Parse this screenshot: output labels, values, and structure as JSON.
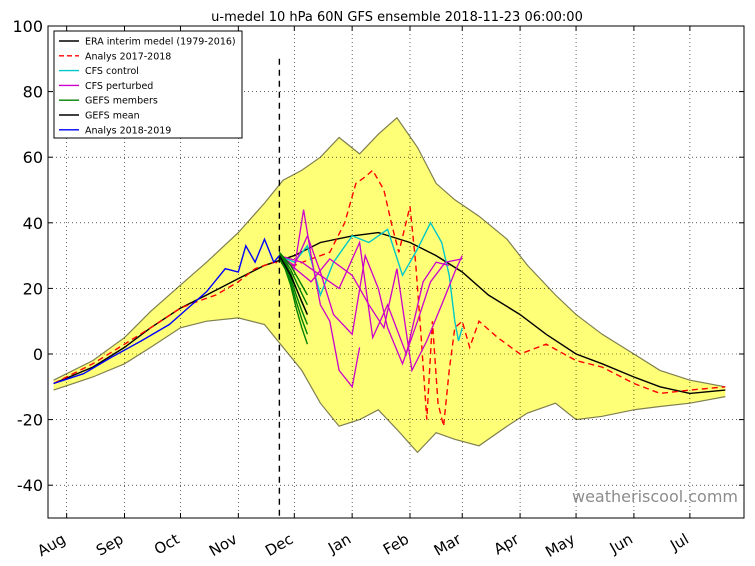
{
  "chart_data": {
    "type": "line",
    "title": "u-medel 10 hPa 60N GFS ensemble 2018-11-23 06:00:00",
    "xlabel": "",
    "ylabel": "",
    "ylim": [
      -50,
      100
    ],
    "yticks": [
      -40,
      -20,
      0,
      20,
      40,
      60,
      80,
      100
    ],
    "xticks": [
      "Aug",
      "Sep",
      "Oct",
      "Nov",
      "Dec",
      "Jan",
      "Feb",
      "Mar",
      "Apr",
      "May",
      "Jun",
      "Jul"
    ],
    "grid": true,
    "legend_position": "top-left",
    "vertical_marker": {
      "date": "2018-11-23",
      "style": "dashed",
      "color": "#000000"
    },
    "band": {
      "color": "#ffff77",
      "edge_color": "#7f7f50",
      "x": [
        "2018-07-25",
        "2018-08-15",
        "2018-09-01",
        "2018-09-15",
        "2018-10-01",
        "2018-10-15",
        "2018-11-01",
        "2018-11-15",
        "2018-11-25",
        "2018-12-05",
        "2018-12-15",
        "2018-12-25",
        "2019-01-05",
        "2019-01-15",
        "2019-01-25",
        "2019-02-05",
        "2019-02-15",
        "2019-02-25",
        "2019-03-10",
        "2019-03-25",
        "2019-04-05",
        "2019-04-20",
        "2019-05-01",
        "2019-05-15",
        "2019-06-01",
        "2019-06-15",
        "2019-07-01",
        "2019-07-20"
      ],
      "upper": [
        -8,
        -2,
        5,
        13,
        21,
        28,
        37,
        46,
        53,
        56,
        60,
        66,
        61,
        67,
        72,
        63,
        52,
        47,
        42,
        35,
        27,
        18,
        12,
        6,
        0,
        -5,
        -8,
        -10
      ],
      "lower": [
        -11,
        -7,
        -3,
        2,
        8,
        10,
        11,
        9,
        2,
        -5,
        -15,
        -22,
        -20,
        -17,
        -23,
        -30,
        -24,
        -26,
        -28,
        -22,
        -18,
        -15,
        -20,
        -19,
        -17,
        -16,
        -15,
        -13
      ]
    },
    "series": [
      {
        "name": "ERA interim medel (1979-2016)",
        "color": "#000000",
        "style": "solid",
        "x": [
          "2018-07-25",
          "2018-08-15",
          "2018-09-01",
          "2018-09-15",
          "2018-10-01",
          "2018-10-15",
          "2018-11-01",
          "2018-11-15",
          "2018-12-01",
          "2018-12-15",
          "2019-01-01",
          "2019-01-15",
          "2019-02-01",
          "2019-02-15",
          "2019-03-01",
          "2019-03-15",
          "2019-04-01",
          "2019-04-15",
          "2019-05-01",
          "2019-05-15",
          "2019-06-01",
          "2019-06-15",
          "2019-07-01",
          "2019-07-20"
        ],
        "values": [
          -9,
          -4,
          2,
          8,
          14,
          18,
          23,
          27,
          30,
          34,
          36,
          37,
          34,
          30,
          25,
          18,
          12,
          6,
          0,
          -3,
          -7,
          -10,
          -12,
          -11
        ]
      },
      {
        "name": "Analys 2017-2018",
        "color": "#ff0000",
        "style": "dashed",
        "x": [
          "2018-07-25",
          "2018-08-15",
          "2018-09-01",
          "2018-09-15",
          "2018-10-01",
          "2018-10-10",
          "2018-10-20",
          "2018-11-01",
          "2018-11-10",
          "2018-11-20",
          "2018-12-01",
          "2018-12-10",
          "2018-12-20",
          "2018-12-28",
          "2019-01-03",
          "2019-01-08",
          "2019-01-12",
          "2019-01-18",
          "2019-01-22",
          "2019-01-26",
          "2019-02-01",
          "2019-02-04",
          "2019-02-07",
          "2019-02-10",
          "2019-02-13",
          "2019-02-16",
          "2019-02-19",
          "2019-02-22",
          "2019-02-25",
          "2019-03-01",
          "2019-03-05",
          "2019-03-10",
          "2019-03-20",
          "2019-04-01",
          "2019-04-15",
          "2019-05-01",
          "2019-05-15",
          "2019-06-01",
          "2019-06-15",
          "2019-07-01",
          "2019-07-20"
        ],
        "values": [
          -9,
          -3,
          3,
          8,
          14,
          16,
          18,
          22,
          26,
          28,
          27,
          29,
          31,
          40,
          52,
          54,
          56,
          50,
          40,
          31,
          45,
          28,
          5,
          -20,
          10,
          -15,
          -22,
          -5,
          8,
          10,
          2,
          10,
          5,
          0,
          3,
          -2,
          -4,
          -9,
          -12,
          -11,
          -10
        ]
      },
      {
        "name": "CFS control",
        "color": "#00c8c8",
        "style": "solid",
        "x": [
          "2018-11-23",
          "2018-12-01",
          "2018-12-08",
          "2018-12-15",
          "2018-12-22",
          "2019-01-01",
          "2019-01-10",
          "2019-01-20",
          "2019-01-28",
          "2019-02-05",
          "2019-02-12",
          "2019-02-18",
          "2019-02-22",
          "2019-02-25",
          "2019-02-27",
          "2019-03-01"
        ],
        "values": [
          30,
          28,
          33,
          18,
          28,
          36,
          34,
          38,
          24,
          32,
          40,
          34,
          24,
          10,
          4,
          8
        ]
      },
      {
        "name": "CFS perturbed",
        "color": "#cc00cc",
        "style": "solid",
        "members": [
          {
            "x": [
              "2018-11-23",
              "2018-12-01",
              "2018-12-06",
              "2018-12-10",
              "2018-12-15",
              "2018-12-20",
              "2018-12-25",
              "2019-01-01",
              "2019-01-05"
            ],
            "values": [
              30,
              26,
              44,
              30,
              15,
              10,
              -5,
              -10,
              2
            ]
          },
          {
            "x": [
              "2018-11-23",
              "2018-12-01",
              "2018-12-08",
              "2018-12-15",
              "2018-12-22",
              "2019-01-01",
              "2019-01-08",
              "2019-01-15",
              "2019-01-20",
              "2019-01-28",
              "2019-02-05",
              "2019-02-12",
              "2019-02-20",
              "2019-03-01"
            ],
            "values": [
              30,
              27,
              36,
              25,
              12,
              6,
              30,
              20,
              8,
              -3,
              10,
              22,
              28,
              29
            ]
          },
          {
            "x": [
              "2018-11-23",
              "2018-12-05",
              "2018-12-15",
              "2018-12-25",
              "2019-01-05",
              "2019-01-12",
              "2019-01-20",
              "2019-01-30",
              "2019-02-08",
              "2019-02-15",
              "2019-02-22"
            ],
            "values": [
              30,
              28,
              24,
              20,
              34,
              5,
              15,
              0,
              22,
              28,
              27
            ]
          },
          {
            "x": [
              "2018-11-23",
              "2018-12-10",
              "2018-12-20",
              "2019-01-01",
              "2019-01-10",
              "2019-01-18",
              "2019-01-25",
              "2019-02-02",
              "2019-02-10",
              "2019-02-18",
              "2019-02-25",
              "2019-03-01"
            ],
            "values": [
              30,
              22,
              29,
              24,
              15,
              8,
              26,
              -5,
              4,
              15,
              25,
              30
            ]
          }
        ]
      },
      {
        "name": "GEFS members",
        "color": "#008000",
        "style": "solid",
        "x": [
          "2018-11-23",
          "2018-11-26",
          "2018-11-29",
          "2018-12-02",
          "2018-12-05",
          "2018-12-08"
        ],
        "upper": [
          31,
          29,
          27,
          24,
          21,
          18
        ],
        "lower": [
          29,
          26,
          21,
          14,
          8,
          3
        ]
      },
      {
        "name": "GEFS mean",
        "color": "#000000",
        "style": "solid",
        "x": [
          "2018-11-23",
          "2018-11-26",
          "2018-11-29",
          "2018-12-02",
          "2018-12-05",
          "2018-12-08"
        ],
        "values": [
          30,
          27,
          24,
          20,
          16,
          12
        ]
      },
      {
        "name": "Analys 2018-2019",
        "color": "#0000ff",
        "style": "solid",
        "x": [
          "2018-07-25",
          "2018-08-10",
          "2018-08-25",
          "2018-09-10",
          "2018-09-25",
          "2018-10-05",
          "2018-10-15",
          "2018-10-25",
          "2018-11-01",
          "2018-11-05",
          "2018-11-10",
          "2018-11-15",
          "2018-11-20",
          "2018-11-23"
        ],
        "values": [
          -9,
          -6,
          -1,
          4,
          9,
          14,
          19,
          26,
          25,
          33,
          28,
          35,
          28,
          30
        ]
      }
    ],
    "legend": [
      "ERA interim medel (1979-2016)",
      "Analys 2017-2018",
      "CFS control",
      "CFS perturbed",
      "GEFS members",
      "GEFS mean",
      "Analys 2018-2019"
    ]
  },
  "watermark": "weatheriscool.comm"
}
